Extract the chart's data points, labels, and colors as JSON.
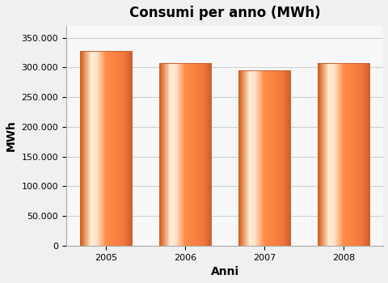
{
  "title": "Consumi per anno (MWh)",
  "xlabel": "Anni",
  "ylabel": "MWh",
  "categories": [
    "2005",
    "2006",
    "2007",
    "2008"
  ],
  "values": [
    328000,
    308000,
    295000,
    308000
  ],
  "ylim": [
    0,
    370000
  ],
  "yticks": [
    0,
    50000,
    100000,
    150000,
    200000,
    250000,
    300000,
    350000
  ],
  "ytick_labels": [
    "0",
    "50.000",
    "100.000",
    "150.000",
    "200.000",
    "250.000",
    "300.000",
    "350.000"
  ],
  "bar_edge_color": "#c8622a",
  "background_color": "#f0f0f0",
  "plot_bg_color": "#f8f8f8",
  "grid_color": "#d0d0d0",
  "title_fontsize": 12,
  "axis_label_fontsize": 10,
  "tick_fontsize": 8,
  "bar_width": 0.65,
  "n_strips": 80
}
